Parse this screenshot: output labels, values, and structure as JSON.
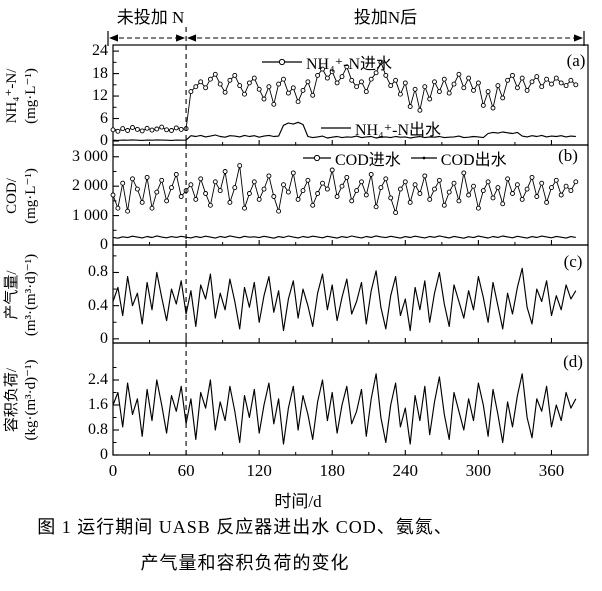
{
  "figure": {
    "phase1_label": "未投加 N",
    "phase2_label": "投加N后",
    "x_axis_label": "时间/d",
    "caption_line1": "图 1  运行期间 UASB 反应器进出水 COD、氨氮、",
    "caption_line2": "产气量和容积负荷的变化"
  },
  "chart_data": {
    "type": "line",
    "title": "图 1 运行期间 UASB 反应器进出水 COD、氨氮、产气量和容积负荷的变化",
    "xlabel": "时间/d",
    "x_start": 0,
    "x_step": 4,
    "x_range": [
      0,
      390
    ],
    "x_ticks": [
      0,
      60,
      120,
      180,
      240,
      300,
      360
    ],
    "x_minor_ticks": [
      30,
      90,
      150,
      210,
      270,
      330,
      390
    ],
    "annotation": {
      "divider_day": 60,
      "phase1_label": "未投加 N",
      "phase2_label": "投加N后"
    },
    "panels": [
      {
        "key": "a",
        "letter": "(a)",
        "ylabel": "NH₄⁺-N/",
        "yunit": "(mg·L⁻¹)",
        "ylim": [
          -1.07,
          25.63
        ],
        "yticks": [
          {
            "v": 24,
            "label": "24"
          },
          {
            "v": 18,
            "label": "18"
          },
          {
            "v": 12,
            "label": "12"
          },
          {
            "v": 6,
            "label": "6"
          },
          {
            "v": 0,
            "label": "0"
          }
        ],
        "yminor": [
          3,
          9,
          15,
          21
        ],
        "series": [
          {
            "name": "NH₄⁺-N进水",
            "marker": "circle",
            "values": [
              3.0,
              2.6,
              3.3,
              2.8,
              3.6,
              3.1,
              2.7,
              3.4,
              2.9,
              3.2,
              3.7,
              3.0,
              2.8,
              3.5,
              3.1,
              3.3,
              13.2,
              14.5,
              15.8,
              14.2,
              16.5,
              17.8,
              15.2,
              13.0,
              16.2,
              17.5,
              14.8,
              12.5,
              15.5,
              16.8,
              13.8,
              11.2,
              14.5,
              9.8,
              15.2,
              16.5,
              12.8,
              14.2,
              10.5,
              13.5,
              15.8,
              12.2,
              17.5,
              19.2,
              16.8,
              18.5,
              15.5,
              17.2,
              19.8,
              16.2,
              14.5,
              15.8,
              13.2,
              16.5,
              18.2,
              21.0,
              17.5,
              14.8,
              16.2,
              12.5,
              15.5,
              9.2,
              13.8,
              8.2,
              14.5,
              11.2,
              15.8,
              13.2,
              16.5,
              12.8,
              15.2,
              17.8,
              14.2,
              16.8,
              13.5,
              15.5,
              9.5,
              13.2,
              8.8,
              14.8,
              11.5,
              16.2,
              17.5,
              14.2,
              16.8,
              13.5,
              15.8,
              17.2,
              14.5,
              16.5,
              15.2,
              16.8,
              15.5,
              14.8,
              16.2,
              15.0
            ]
          },
          {
            "name": "NH₄⁺-N出水",
            "marker": "none",
            "values": [
              0.2,
              0.15,
              0.25,
              0.2,
              0.3,
              0.2,
              0.15,
              0.25,
              0.2,
              0.3,
              0.25,
              0.2,
              0.15,
              0.25,
              0.2,
              0.25,
              1.4,
              1.2,
              1.5,
              1.1,
              1.3,
              1.6,
              1.2,
              1.0,
              1.4,
              1.3,
              1.1,
              1.5,
              1.2,
              1.4,
              1.0,
              1.3,
              1.5,
              1.2,
              1.3,
              4.2,
              4.8,
              4.5,
              5.0,
              4.4,
              1.2,
              0.9,
              1.1,
              1.3,
              0.8,
              1.0,
              1.2,
              0.9,
              1.1,
              1.0,
              1.3,
              0.9,
              1.1,
              1.2,
              0.8,
              1.0,
              1.1,
              0.9,
              1.2,
              1.0,
              1.1,
              0.8,
              1.0,
              1.2,
              0.9,
              1.1,
              1.0,
              1.2,
              0.9,
              1.0,
              1.1,
              1.3,
              0.9,
              1.0,
              1.2,
              1.1,
              0.9,
              2.0,
              2.3,
              2.1,
              2.4,
              2.2,
              2.0,
              2.3,
              1.3,
              1.1,
              1.4,
              1.2,
              1.5,
              1.1,
              1.3,
              1.2,
              1.4,
              1.1,
              1.3,
              1.2
            ]
          }
        ]
      },
      {
        "key": "b",
        "letter": "(b)",
        "ylabel": "COD/",
        "yunit": "(mg·L⁻¹)",
        "ylim": [
          0,
          3400
        ],
        "yticks": [
          {
            "v": 3000,
            "label": "3 000"
          },
          {
            "v": 2000,
            "label": "2 000"
          },
          {
            "v": 1000,
            "label": "1 000"
          },
          {
            "v": 0,
            "label": "0"
          }
        ],
        "yminor": [
          500,
          1500,
          2500
        ],
        "series": [
          {
            "name": "COD进水",
            "marker": "circle",
            "values": [
              1700,
              1250,
              2100,
              1150,
              2250,
              1900,
              1450,
              2300,
              1250,
              1800,
              2200,
              1500,
              1950,
              2400,
              1650,
              1850,
              2050,
              1550,
              2250,
              1750,
              1350,
              2150,
              1850,
              2500,
              1450,
              1950,
              2700,
              1250,
              1750,
              2150,
              1550,
              1900,
              2350,
              1650,
              1150,
              2050,
              1800,
              2450,
              1550,
              1850,
              2200,
              1350,
              1750,
              2100,
              1900,
              2550,
              1650,
              2000,
              2300,
              1500,
              1850,
              2150,
              1700,
              2400,
              1300,
              1950,
              2250,
              1600,
              1100,
              1900,
              2150,
              1450,
              2050,
              1750,
              2350,
              1550,
              1900,
              2200,
              1350,
              1800,
              2100,
              1500,
              2450,
              1700,
              2000,
              1250,
              1850,
              2150,
              1600,
              1950,
              1400,
              2250,
              1750,
              2050,
              1550,
              1900,
              2300,
              1650,
              2100,
              1450,
              1950,
              2200,
              1700,
              2000,
              1850,
              2150
            ]
          },
          {
            "name": "COD出水",
            "marker": "none",
            "values": [
              260,
              230,
              280,
              250,
              300,
              270,
              240,
              290,
              255,
              310,
              270,
              245,
              285,
              260,
              295,
              265,
              240,
              285,
              255,
              300,
              270,
              235,
              290,
              260,
              310,
              275,
              245,
              295,
              265,
              280,
              250,
              295,
              265,
              230,
              285,
              255,
              305,
              270,
              240,
              290,
              260,
              300,
              275,
              245,
              295,
              265,
              235,
              285,
              255,
              305,
              270,
              240,
              290,
              260,
              310,
              275,
              250,
              295,
              265,
              235,
              285,
              255,
              300,
              270,
              240,
              290,
              262,
              308,
              272,
              242,
              292,
              262,
              232,
              282,
              252,
              302,
              268,
              238,
              288,
              258,
              306,
              276,
              246,
              296,
              266,
              236,
              286,
              256,
              304,
              274,
              244,
              294,
              264,
              234,
              284,
              260
            ]
          }
        ]
      },
      {
        "key": "c",
        "letter": "(c)",
        "ylabel": "产气量/",
        "yunit": "(m³·(m³·d)⁻¹)",
        "ylim": [
          -0.05,
          1.131
        ],
        "yticks": [
          {
            "v": 0.8,
            "label": "0.8"
          },
          {
            "v": 0.4,
            "label": "0.4"
          },
          {
            "v": 0,
            "label": "0"
          }
        ],
        "yminor": [
          0.2,
          0.6,
          1.0
        ],
        "series": [
          {
            "name": "产气量",
            "marker": "none",
            "values": [
              0.45,
              0.62,
              0.28,
              0.75,
              0.4,
              0.55,
              0.18,
              0.68,
              0.35,
              0.8,
              0.5,
              0.22,
              0.6,
              0.42,
              0.7,
              0.3,
              0.58,
              0.15,
              0.65,
              0.48,
              0.78,
              0.25,
              0.55,
              0.35,
              0.72,
              0.45,
              0.12,
              0.62,
              0.38,
              0.68,
              0.2,
              0.52,
              0.75,
              0.32,
              0.58,
              0.1,
              0.48,
              0.7,
              0.25,
              0.6,
              0.4,
              0.15,
              0.55,
              0.78,
              0.35,
              0.65,
              0.22,
              0.5,
              0.72,
              0.3,
              0.45,
              0.68,
              0.18,
              0.58,
              0.82,
              0.38,
              0.12,
              0.52,
              0.75,
              0.28,
              0.48,
              0.1,
              0.62,
              0.35,
              0.7,
              0.2,
              0.55,
              0.8,
              0.42,
              0.15,
              0.65,
              0.45,
              0.25,
              0.58,
              0.35,
              0.75,
              0.5,
              0.2,
              0.68,
              0.4,
              0.12,
              0.55,
              0.3,
              0.62,
              0.85,
              0.38,
              0.18,
              0.6,
              0.45,
              0.7,
              0.28,
              0.52,
              0.35,
              0.65,
              0.48,
              0.58
            ]
          }
        ]
      },
      {
        "key": "d",
        "letter": "(d)",
        "ylabel": "容积负荷/",
        "yunit": "(kg·(m³·d)⁻¹)",
        "ylim": [
          0,
          3.584
        ],
        "yticks": [
          {
            "v": 2.4,
            "label": "2.4"
          },
          {
            "v": 1.6,
            "label": "1.6"
          },
          {
            "v": 0.8,
            "label": "0.8"
          },
          {
            "v": 0,
            "label": "0"
          }
        ],
        "yminor": [
          0.4,
          1.2,
          2.0,
          2.8
        ],
        "series": [
          {
            "name": "容积负荷",
            "marker": "none",
            "values": [
              1.6,
              2.0,
              0.9,
              2.3,
              1.3,
              1.8,
              0.6,
              2.1,
              1.1,
              2.4,
              1.6,
              0.7,
              1.9,
              1.4,
              2.2,
              1.0,
              1.8,
              0.5,
              2.0,
              1.5,
              2.4,
              0.8,
              1.7,
              1.1,
              2.2,
              1.4,
              0.4,
              1.9,
              1.2,
              2.1,
              0.7,
              1.6,
              2.3,
              1.0,
              1.8,
              0.35,
              1.5,
              2.2,
              0.8,
              1.9,
              1.3,
              0.5,
              1.7,
              2.4,
              1.1,
              2.0,
              0.7,
              1.6,
              2.2,
              1.0,
              1.4,
              2.1,
              0.6,
              1.8,
              2.6,
              1.2,
              0.4,
              1.6,
              2.3,
              0.9,
              1.5,
              0.35,
              1.9,
              1.1,
              2.2,
              0.65,
              1.7,
              2.5,
              1.3,
              0.5,
              2.0,
              1.4,
              0.8,
              1.8,
              1.1,
              2.3,
              1.6,
              0.6,
              2.1,
              1.3,
              0.4,
              1.7,
              0.9,
              1.9,
              2.6,
              1.2,
              0.55,
              1.8,
              1.4,
              2.2,
              0.9,
              1.6,
              1.1,
              2.0,
              1.5,
              1.8
            ]
          }
        ]
      }
    ]
  }
}
